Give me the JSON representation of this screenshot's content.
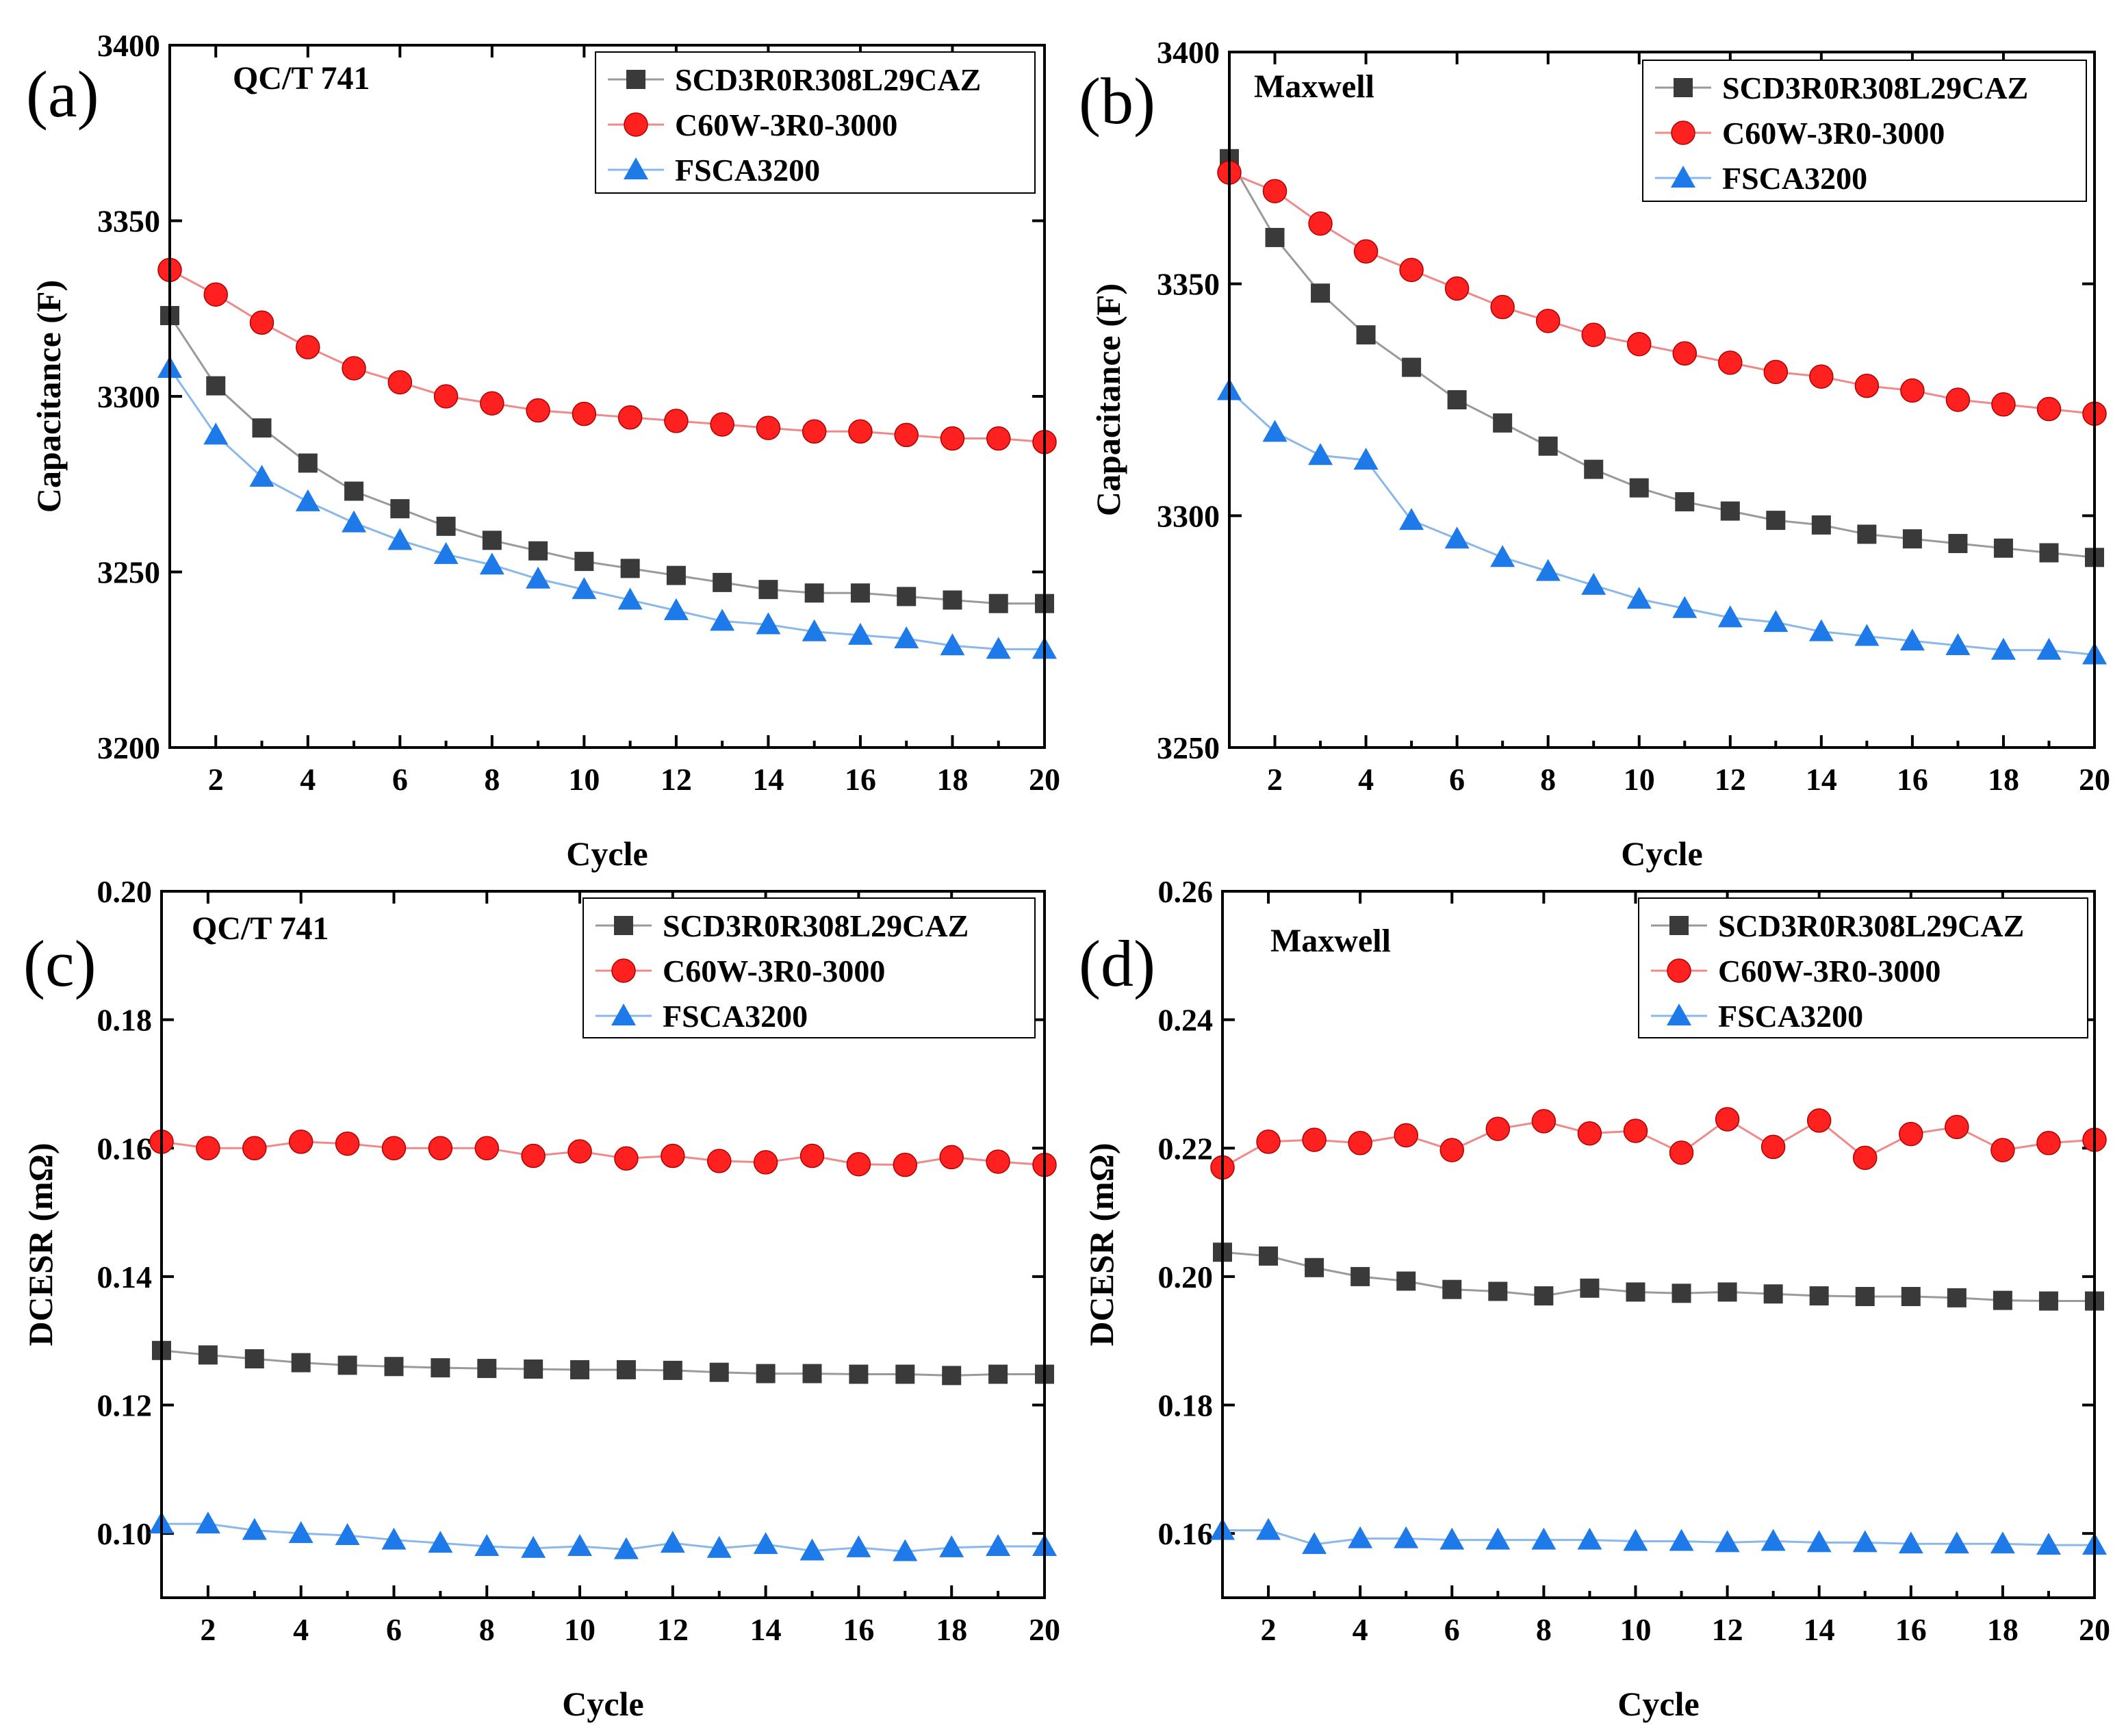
{
  "colors": {
    "SCD3R0R308L29CAZ": {
      "line": "#9a9a9a",
      "marker": "#3a3a3a"
    },
    "C60W-3R0-3000": {
      "line": "#f08a8a",
      "marker": "#ff2020"
    },
    "FSCA3200": {
      "line": "#8ab8ea",
      "marker": "#1e7ae8"
    }
  },
  "chart_data": [
    {
      "type": "line",
      "panel": "(a)",
      "annotation": "QC/T 741",
      "xlabel": "Cycle",
      "ylabel": "Capacitance (F)",
      "xlim": [
        1,
        20
      ],
      "ylim": [
        3200,
        3400
      ],
      "xticks": [
        2,
        4,
        6,
        8,
        10,
        12,
        14,
        16,
        18,
        20
      ],
      "yticks": [
        3200,
        3250,
        3300,
        3350,
        3400
      ],
      "legend_position": "top-right",
      "x": [
        1,
        2,
        3,
        4,
        5,
        6,
        7,
        8,
        9,
        10,
        11,
        12,
        13,
        14,
        15,
        16,
        17,
        18,
        19,
        20
      ],
      "series": [
        {
          "name": "SCD3R0R308L29CAZ",
          "marker": "square",
          "values": [
            3323,
            3303,
            3291,
            3281,
            3273,
            3268,
            3263,
            3259,
            3256,
            3253,
            3251,
            3249,
            3247,
            3245,
            3244,
            3244,
            3243,
            3242,
            3241,
            3241
          ]
        },
        {
          "name": "C60W-3R0-3000",
          "marker": "circle",
          "values": [
            3336,
            3329,
            3321,
            3314,
            3308,
            3304,
            3300,
            3298,
            3296,
            3295,
            3294,
            3293,
            3292,
            3291,
            3290,
            3290,
            3289,
            3288,
            3288,
            3287
          ]
        },
        {
          "name": "FSCA3200",
          "marker": "triangle",
          "values": [
            3308,
            3289,
            3277,
            3270,
            3264,
            3259,
            3255,
            3252,
            3248,
            3245,
            3242,
            3239,
            3236,
            3235,
            3233,
            3232,
            3231,
            3229,
            3228,
            3228
          ]
        }
      ]
    },
    {
      "type": "line",
      "panel": "(b)",
      "annotation": "Maxwell",
      "xlabel": "Cycle",
      "ylabel": "Capacitance (F)",
      "xlim": [
        1,
        20
      ],
      "ylim": [
        3250,
        3400
      ],
      "xticks": [
        2,
        4,
        6,
        8,
        10,
        12,
        14,
        16,
        18,
        20
      ],
      "yticks": [
        3250,
        3300,
        3350,
        3400
      ],
      "legend_position": "top-right",
      "x": [
        1,
        2,
        3,
        4,
        5,
        6,
        7,
        8,
        9,
        10,
        11,
        12,
        13,
        14,
        15,
        16,
        17,
        18,
        19,
        20
      ],
      "series": [
        {
          "name": "SCD3R0R308L29CAZ",
          "marker": "square",
          "values": [
            3377,
            3360,
            3348,
            3339,
            3332,
            3325,
            3320,
            3315,
            3310,
            3306,
            3303,
            3301,
            3299,
            3298,
            3296,
            3295,
            3294,
            3293,
            3292,
            3291
          ]
        },
        {
          "name": "C60W-3R0-3000",
          "marker": "circle",
          "values": [
            3374,
            3370,
            3363,
            3357,
            3353,
            3349,
            3345,
            3342,
            3339,
            3337,
            3335,
            3333,
            3331,
            3330,
            3328,
            3327,
            3325,
            3324,
            3323,
            3322
          ]
        },
        {
          "name": "FSCA3200",
          "marker": "triangle",
          "values": [
            3327,
            3318,
            3313,
            3312,
            3299,
            3295,
            3291,
            3288,
            3285,
            3282,
            3280,
            3278,
            3277,
            3275,
            3274,
            3273,
            3272,
            3271,
            3271,
            3270
          ]
        }
      ]
    },
    {
      "type": "line",
      "panel": "(c)",
      "annotation": "QC/T 741",
      "xlabel": "Cycle",
      "ylabel": "DCESR (mΩ)",
      "xlim": [
        1,
        20
      ],
      "ylim": [
        0.09,
        0.2
      ],
      "xticks": [
        2,
        4,
        6,
        8,
        10,
        12,
        14,
        16,
        18,
        20
      ],
      "yticks": [
        0.1,
        0.12,
        0.14,
        0.16,
        0.18,
        0.2
      ],
      "ytick_labels": [
        "0.10",
        "0.12",
        "0.14",
        "0.16",
        "0.18",
        "0.20"
      ],
      "legend_position": "top-right",
      "x": [
        1,
        2,
        3,
        4,
        5,
        6,
        7,
        8,
        9,
        10,
        11,
        12,
        13,
        14,
        15,
        16,
        17,
        18,
        19,
        20
      ],
      "series": [
        {
          "name": "SCD3R0R308L29CAZ",
          "marker": "square",
          "values": [
            0.1285,
            0.1278,
            0.1272,
            0.1266,
            0.1262,
            0.126,
            0.1258,
            0.1257,
            0.1256,
            0.1255,
            0.1255,
            0.1254,
            0.1251,
            0.1249,
            0.1249,
            0.1248,
            0.1248,
            0.1246,
            0.1248,
            0.1248
          ]
        },
        {
          "name": "C60W-3R0-3000",
          "marker": "circle",
          "values": [
            0.161,
            0.16,
            0.16,
            0.161,
            0.1607,
            0.16,
            0.16,
            0.16,
            0.1588,
            0.1595,
            0.1584,
            0.1588,
            0.158,
            0.1578,
            0.1588,
            0.1575,
            0.1574,
            0.1586,
            0.1579,
            0.1574
          ]
        },
        {
          "name": "FSCA3200",
          "marker": "triangle",
          "values": [
            0.1015,
            0.1015,
            0.1005,
            0.1,
            0.0997,
            0.099,
            0.0985,
            0.098,
            0.0977,
            0.098,
            0.0975,
            0.0985,
            0.0977,
            0.0983,
            0.0973,
            0.0978,
            0.0972,
            0.0978,
            0.098,
            0.098
          ]
        }
      ]
    },
    {
      "type": "line",
      "panel": "(d)",
      "annotation": "Maxwell",
      "xlabel": "Cycle",
      "ylabel": "DCESR (mΩ)",
      "xlim": [
        1,
        20
      ],
      "ylim": [
        0.15,
        0.26
      ],
      "xticks": [
        2,
        4,
        6,
        8,
        10,
        12,
        14,
        16,
        18,
        20
      ],
      "yticks": [
        0.16,
        0.18,
        0.2,
        0.22,
        0.24,
        0.26
      ],
      "ytick_labels": [
        "0.16",
        "0.18",
        "0.20",
        "0.22",
        "0.24",
        "0.26"
      ],
      "legend_position": "top-right",
      "x": [
        1,
        2,
        3,
        4,
        5,
        6,
        7,
        8,
        9,
        10,
        11,
        12,
        13,
        14,
        15,
        16,
        17,
        18,
        19,
        20
      ],
      "series": [
        {
          "name": "SCD3R0R308L29CAZ",
          "marker": "square",
          "values": [
            0.2038,
            0.2032,
            0.2014,
            0.2,
            0.1993,
            0.198,
            0.1977,
            0.197,
            0.1982,
            0.1976,
            0.1974,
            0.1976,
            0.1973,
            0.197,
            0.1969,
            0.1969,
            0.1967,
            0.1963,
            0.1962,
            0.1962
          ]
        },
        {
          "name": "C60W-3R0-3000",
          "marker": "circle",
          "values": [
            0.217,
            0.221,
            0.2213,
            0.2208,
            0.222,
            0.2197,
            0.223,
            0.2242,
            0.2223,
            0.2227,
            0.2193,
            0.2245,
            0.2202,
            0.2243,
            0.2185,
            0.2222,
            0.2233,
            0.2197,
            0.2208,
            0.2213
          ]
        },
        {
          "name": "FSCA3200",
          "marker": "triangle",
          "values": [
            0.1605,
            0.1605,
            0.1583,
            0.1592,
            0.1592,
            0.159,
            0.159,
            0.159,
            0.159,
            0.1588,
            0.1588,
            0.1586,
            0.1588,
            0.1586,
            0.1586,
            0.1584,
            0.1584,
            0.1584,
            0.1582,
            0.1582
          ]
        }
      ]
    }
  ]
}
